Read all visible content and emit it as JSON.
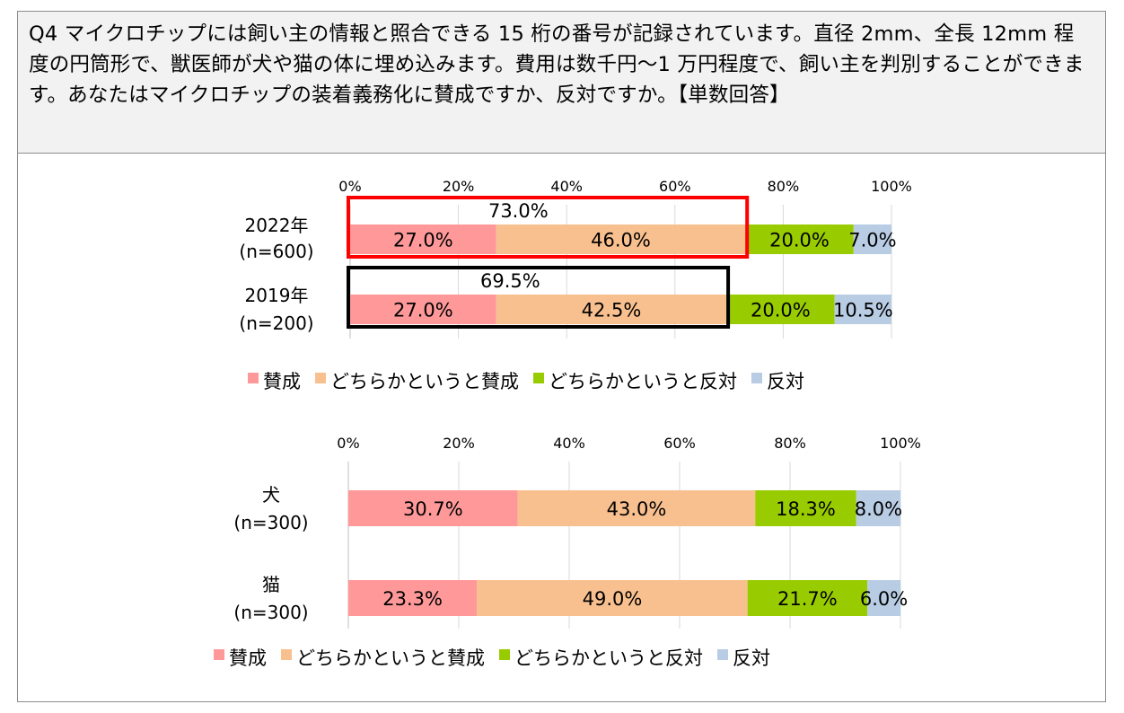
{
  "question": {
    "text": "Q4 マイクロチップには飼い主の情報と照合できる 15 桁の番号が記録されています。直径 2mm、全長 12mm 程度の円筒形で、獣医師が犬や猫の体に埋め込みます。費用は数千円〜1 万円程度で、飼い主を判別することができます。あなたはマイクロチップの装着義務化に賛成ですか、反対ですか。【単数回答】"
  },
  "colors": {
    "賛成": "#ff9999",
    "どちらかというと賛成": "#f9c08f",
    "どちらかというと反対": "#99cc00",
    "反対": "#b8cce4",
    "highlight_red": "#ff0000",
    "highlight_black": "#000000"
  },
  "chart_data": [
    {
      "type": "bar",
      "orientation": "horizontal-stacked",
      "xlim": [
        0,
        100
      ],
      "ticks": [
        "0%",
        "20%",
        "40%",
        "60%",
        "80%",
        "100%"
      ],
      "categories": [
        {
          "line1": "2022年",
          "line2": "(n=600)"
        },
        {
          "line1": "2019年",
          "line2": "(n=200)"
        }
      ],
      "series": [
        {
          "name": "賛成",
          "values": [
            27.0,
            27.0
          ],
          "labels": [
            "27.0%",
            "27.0%"
          ]
        },
        {
          "name": "どちらかというと賛成",
          "values": [
            46.0,
            42.5
          ],
          "labels": [
            "46.0%",
            "42.5%"
          ]
        },
        {
          "name": "どちらかというと反対",
          "values": [
            20.0,
            20.0
          ],
          "labels": [
            "20.0%",
            "20.0%"
          ]
        },
        {
          "name": "反対",
          "values": [
            7.0,
            10.5
          ],
          "labels": [
            "7.0%",
            "10.5%"
          ]
        }
      ],
      "annotations": [
        {
          "category": 0,
          "value": 73.0,
          "label": "73.0%",
          "style": "red"
        },
        {
          "category": 1,
          "value": 69.5,
          "label": "69.5%",
          "style": "black"
        }
      ],
      "legend": "bottom",
      "grid": true
    },
    {
      "type": "bar",
      "orientation": "horizontal-stacked",
      "xlim": [
        0,
        100
      ],
      "ticks": [
        "0%",
        "20%",
        "40%",
        "60%",
        "80%",
        "100%"
      ],
      "categories": [
        {
          "line1": "犬",
          "line2": "(n=300)"
        },
        {
          "line1": "猫",
          "line2": "(n=300)"
        }
      ],
      "series": [
        {
          "name": "賛成",
          "values": [
            30.7,
            23.3
          ],
          "labels": [
            "30.7%",
            "23.3%"
          ]
        },
        {
          "name": "どちらかというと賛成",
          "values": [
            43.0,
            49.0
          ],
          "labels": [
            "43.0%",
            "49.0%"
          ]
        },
        {
          "name": "どちらかというと反対",
          "values": [
            18.3,
            21.7
          ],
          "labels": [
            "18.3%",
            "21.7%"
          ]
        },
        {
          "name": "反対",
          "values": [
            8.0,
            6.0
          ],
          "labels": [
            "8.0%",
            "6.0%"
          ]
        }
      ],
      "annotations": [],
      "legend": "bottom",
      "grid": true
    }
  ]
}
